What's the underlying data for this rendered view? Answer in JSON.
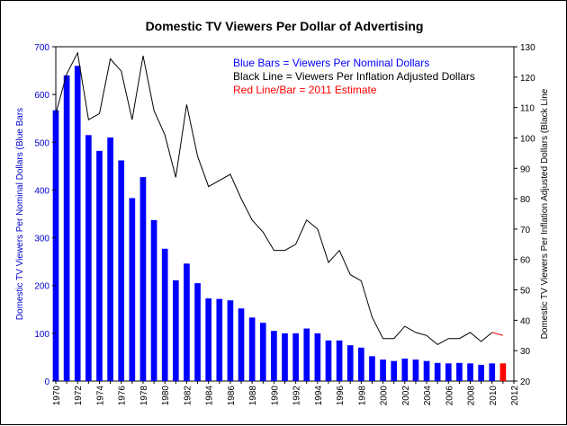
{
  "chart_data": {
    "type": "bar",
    "title": "Domestic TV Viewers Per Dollar of Advertising",
    "ylabel_left": "Domestic TV Viewers Per Nominal Dollars (Blue Bars",
    "ylabel_right": "Domestic TV Viewers Per Inflation Adjusted Dollars (Black Line",
    "ylim_left": [
      0,
      700
    ],
    "yticks_left": [
      0,
      100,
      200,
      300,
      400,
      500,
      600,
      700
    ],
    "ylim_right": [
      20,
      130
    ],
    "yticks_right": [
      20,
      30,
      40,
      50,
      60,
      70,
      80,
      90,
      100,
      110,
      120,
      130
    ],
    "xlim": [
      1970,
      2012
    ],
    "xticks": [
      1970,
      1972,
      1974,
      1976,
      1978,
      1980,
      1982,
      1984,
      1986,
      1988,
      1990,
      1992,
      1994,
      1996,
      1998,
      2000,
      2002,
      2004,
      2006,
      2008,
      2010,
      2012
    ],
    "legend_notes": [
      {
        "text": "Blue Bars = Viewers Per Nominal Dollars",
        "color": "#0000ff"
      },
      {
        "text": "Black Line = Viewers Per Inflation Adjusted Dollars",
        "color": "#000000"
      },
      {
        "text": "Red Line/Bar = 2011 Estimate",
        "color": "#ff0000"
      }
    ],
    "grid": false,
    "colors": {
      "bars": "#0000ff",
      "estimate": "#ff0000",
      "line": "#000000"
    },
    "years": [
      1970,
      1971,
      1972,
      1973,
      1974,
      1975,
      1976,
      1977,
      1978,
      1979,
      1980,
      1981,
      1982,
      1983,
      1984,
      1985,
      1986,
      1987,
      1988,
      1989,
      1990,
      1991,
      1992,
      1993,
      1994,
      1995,
      1996,
      1997,
      1998,
      1999,
      2000,
      2001,
      2002,
      2003,
      2004,
      2005,
      2006,
      2007,
      2008,
      2009,
      2010,
      2011
    ],
    "series": [
      {
        "name": "Viewers Per Nominal Dollars",
        "kind": "bar",
        "axis": "left",
        "values": [
          567,
          640,
          660,
          515,
          482,
          510,
          462,
          383,
          427,
          337,
          277,
          211,
          246,
          205,
          173,
          172,
          169,
          152,
          133,
          122,
          105,
          100,
          100,
          110,
          100,
          85,
          85,
          75,
          70,
          52,
          45,
          42,
          47,
          45,
          42,
          38,
          37,
          38,
          37,
          34,
          37,
          37
        ]
      },
      {
        "name": "Viewers Per Inflation Adjusted Dollars",
        "kind": "line",
        "axis": "right",
        "values": [
          108,
          121,
          128,
          106,
          108,
          126,
          122,
          106,
          127,
          109,
          101,
          87,
          111,
          94,
          84,
          86,
          88,
          80,
          73,
          69,
          63,
          63,
          65,
          73,
          70,
          59,
          63,
          55,
          53,
          41,
          34,
          34,
          38,
          36,
          35,
          32,
          34,
          34,
          36,
          33,
          36,
          35
        ]
      }
    ],
    "estimate_year": 2011
  }
}
